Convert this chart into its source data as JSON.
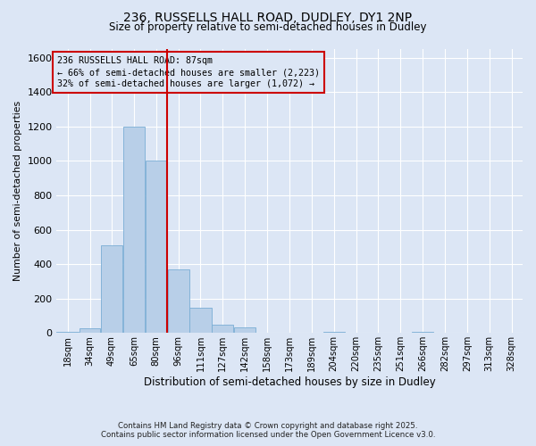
{
  "title_line1": "236, RUSSELLS HALL ROAD, DUDLEY, DY1 2NP",
  "title_line2": "Size of property relative to semi-detached houses in Dudley",
  "xlabel": "Distribution of semi-detached houses by size in Dudley",
  "ylabel": "Number of semi-detached properties",
  "footnote1": "Contains HM Land Registry data © Crown copyright and database right 2025.",
  "footnote2": "Contains public sector information licensed under the Open Government Licence v3.0.",
  "bar_color": "#b8cfe8",
  "bar_edge_color": "#7aadd4",
  "background_color": "#dce6f5",
  "vline_color": "#cc0000",
  "vline_x": 88,
  "annotation_text": "236 RUSSELLS HALL ROAD: 87sqm\n← 66% of semi-detached houses are smaller (2,223)\n32% of semi-detached houses are larger (1,072) →",
  "box_edge_color": "#cc0000",
  "categories": [
    "18sqm",
    "34sqm",
    "49sqm",
    "65sqm",
    "80sqm",
    "96sqm",
    "111sqm",
    "127sqm",
    "142sqm",
    "158sqm",
    "173sqm",
    "189sqm",
    "204sqm",
    "220sqm",
    "235sqm",
    "251sqm",
    "266sqm",
    "282sqm",
    "297sqm",
    "313sqm",
    "328sqm"
  ],
  "bin_edges": [
    10.5,
    26.5,
    41.5,
    57.0,
    72.5,
    88.0,
    103.5,
    119.0,
    134.5,
    150.0,
    165.5,
    181.0,
    196.5,
    212.0,
    227.5,
    243.0,
    258.5,
    274.0,
    289.5,
    305.0,
    320.5,
    336.0
  ],
  "values": [
    5,
    25,
    510,
    1200,
    1000,
    370,
    145,
    50,
    35,
    0,
    0,
    0,
    5,
    0,
    0,
    0,
    5,
    0,
    0,
    0,
    0
  ],
  "ylim": [
    0,
    1650
  ],
  "yticks": [
    0,
    200,
    400,
    600,
    800,
    1000,
    1200,
    1400,
    1600
  ]
}
